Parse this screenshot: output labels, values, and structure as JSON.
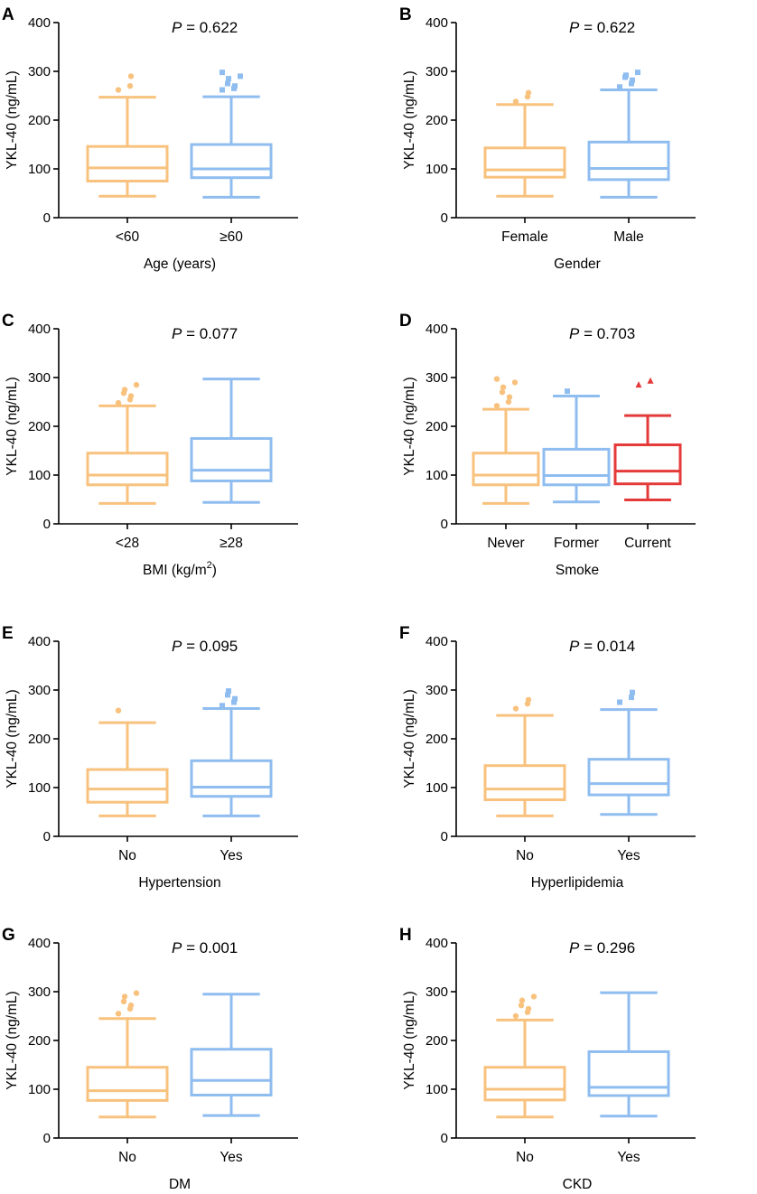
{
  "y_axis_label": "YKL-40 (ng/mL)",
  "y_ticks": [
    "0",
    "100",
    "200",
    "300",
    "400"
  ],
  "colors": {
    "orange": "#f8c27e",
    "blue": "#8fbdf0",
    "red": "#e53a3a",
    "axis": "#000000"
  },
  "chart_data": [
    {
      "panel": "A",
      "type": "boxplot",
      "p_prefix": "P",
      "p_value": "= 0.622",
      "xlabel": "Age (years)",
      "ylabel": "YKL-40 (ng/mL)",
      "ylim": [
        0,
        400
      ],
      "groups": [
        {
          "name": "<60",
          "color": "orange",
          "marker": "circle",
          "whisker_low": 44,
          "q1": 75,
          "median": 102,
          "q3": 146,
          "whisker_high": 247,
          "outliers": [
            262,
            270,
            290
          ]
        },
        {
          "name": "≥60",
          "color": "blue",
          "marker": "square",
          "whisker_low": 42,
          "q1": 82,
          "median": 100,
          "q3": 150,
          "whisker_high": 248,
          "outliers": [
            262,
            265,
            270,
            275,
            285,
            290,
            298
          ]
        }
      ]
    },
    {
      "panel": "B",
      "type": "boxplot",
      "p_prefix": "P",
      "p_value": "= 0.622",
      "xlabel": "Gender",
      "ylabel": "YKL-40 (ng/mL)",
      "ylim": [
        0,
        400
      ],
      "groups": [
        {
          "name": "Female",
          "color": "orange",
          "marker": "circle",
          "whisker_low": 44,
          "q1": 83,
          "median": 98,
          "q3": 143,
          "whisker_high": 232,
          "outliers": [
            238,
            248,
            256
          ]
        },
        {
          "name": "Male",
          "color": "blue",
          "marker": "square",
          "whisker_low": 42,
          "q1": 78,
          "median": 101,
          "q3": 155,
          "whisker_high": 262,
          "outliers": [
            268,
            275,
            282,
            288,
            292,
            298
          ]
        }
      ]
    },
    {
      "panel": "C",
      "type": "boxplot",
      "p_prefix": "P",
      "p_value": "= 0.077",
      "xlabel": "BMI (kg/m",
      "xlabel_sup": "2",
      "xlabel_end": ")",
      "ylabel": "YKL-40 (ng/mL)",
      "ylim": [
        0,
        400
      ],
      "groups": [
        {
          "name": "<28",
          "color": "orange",
          "marker": "circle",
          "whisker_low": 42,
          "q1": 80,
          "median": 100,
          "q3": 145,
          "whisker_high": 242,
          "outliers": [
            248,
            255,
            262,
            268,
            275,
            285
          ]
        },
        {
          "name": "≥28",
          "color": "blue",
          "marker": "square",
          "whisker_low": 44,
          "q1": 88,
          "median": 110,
          "q3": 175,
          "whisker_high": 297,
          "outliers": []
        }
      ]
    },
    {
      "panel": "D",
      "type": "boxplot",
      "p_prefix": "P",
      "p_value": "= 0.703",
      "xlabel": "Smoke",
      "ylabel": "YKL-40 (ng/mL)",
      "ylim": [
        0,
        400
      ],
      "groups": [
        {
          "name": "Never",
          "color": "orange",
          "marker": "circle",
          "whisker_low": 42,
          "q1": 80,
          "median": 100,
          "q3": 145,
          "whisker_high": 235,
          "outliers": [
            242,
            250,
            260,
            270,
            280,
            290,
            297
          ]
        },
        {
          "name": "Former",
          "color": "blue",
          "marker": "square",
          "whisker_low": 45,
          "q1": 80,
          "median": 99,
          "q3": 153,
          "whisker_high": 262,
          "outliers": [
            272
          ]
        },
        {
          "name": "Current",
          "color": "red",
          "marker": "triangle",
          "whisker_low": 49,
          "q1": 82,
          "median": 108,
          "q3": 162,
          "whisker_high": 222,
          "outliers": [
            285,
            293
          ]
        }
      ]
    },
    {
      "panel": "E",
      "type": "boxplot",
      "p_prefix": "P",
      "p_value": "= 0.095",
      "xlabel": "Hypertension",
      "ylabel": "YKL-40 (ng/mL)",
      "ylim": [
        0,
        400
      ],
      "groups": [
        {
          "name": "No",
          "color": "orange",
          "marker": "circle",
          "whisker_low": 42,
          "q1": 70,
          "median": 97,
          "q3": 137,
          "whisker_high": 233,
          "outliers": [
            258
          ]
        },
        {
          "name": "Yes",
          "color": "blue",
          "marker": "square",
          "whisker_low": 42,
          "q1": 82,
          "median": 101,
          "q3": 155,
          "whisker_high": 262,
          "outliers": [
            268,
            275,
            282,
            290,
            298
          ]
        }
      ]
    },
    {
      "panel": "F",
      "type": "boxplot",
      "p_prefix": "P",
      "p_value": "= 0.014",
      "xlabel": "Hyperlipidemia",
      "ylabel": "YKL-40 (ng/mL)",
      "ylim": [
        0,
        400
      ],
      "groups": [
        {
          "name": "No",
          "color": "orange",
          "marker": "circle",
          "whisker_low": 42,
          "q1": 75,
          "median": 97,
          "q3": 145,
          "whisker_high": 248,
          "outliers": [
            262,
            272,
            280
          ]
        },
        {
          "name": "Yes",
          "color": "blue",
          "marker": "square",
          "whisker_low": 45,
          "q1": 85,
          "median": 108,
          "q3": 158,
          "whisker_high": 260,
          "outliers": [
            275,
            285,
            295
          ]
        }
      ]
    },
    {
      "panel": "G",
      "type": "boxplot",
      "p_prefix": "P",
      "p_value": "= 0.001",
      "xlabel": "DM",
      "ylabel": "YKL-40 (ng/mL)",
      "ylim": [
        0,
        400
      ],
      "groups": [
        {
          "name": "No",
          "color": "orange",
          "marker": "circle",
          "whisker_low": 43,
          "q1": 77,
          "median": 97,
          "q3": 145,
          "whisker_high": 245,
          "outliers": [
            255,
            265,
            272,
            280,
            290,
            297
          ]
        },
        {
          "name": "Yes",
          "color": "blue",
          "marker": "square",
          "whisker_low": 46,
          "q1": 88,
          "median": 118,
          "q3": 182,
          "whisker_high": 295,
          "outliers": []
        }
      ]
    },
    {
      "panel": "H",
      "type": "boxplot",
      "p_prefix": "P",
      "p_value": "= 0.296",
      "xlabel": "CKD",
      "ylabel": "YKL-40 (ng/mL)",
      "ylim": [
        0,
        400
      ],
      "groups": [
        {
          "name": "No",
          "color": "orange",
          "marker": "circle",
          "whisker_low": 43,
          "q1": 78,
          "median": 100,
          "q3": 145,
          "whisker_high": 242,
          "outliers": [
            250,
            258,
            265,
            272,
            282,
            290
          ]
        },
        {
          "name": "Yes",
          "color": "blue",
          "marker": "square",
          "whisker_low": 45,
          "q1": 87,
          "median": 104,
          "q3": 177,
          "whisker_high": 298,
          "outliers": []
        }
      ]
    }
  ]
}
